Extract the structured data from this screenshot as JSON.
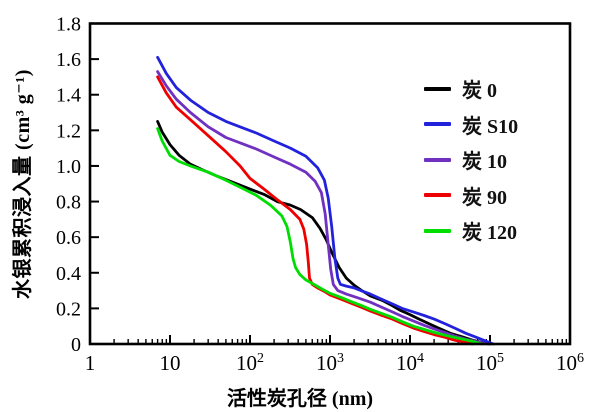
{
  "chart_data": {
    "type": "line",
    "title": "",
    "xlabel": "活性炭孔径 (nm)",
    "ylabel": "水银累积浸入量 (cm³ g⁻¹)",
    "x_scale": "log",
    "xlim": [
      1,
      1000000
    ],
    "ylim": [
      0,
      1.8
    ],
    "grid": false,
    "legend_position": "upper right inside",
    "y_ticks": [
      {
        "v": 0,
        "label": "0"
      },
      {
        "v": 0.2,
        "label": "0.2"
      },
      {
        "v": 0.4,
        "label": "0.4"
      },
      {
        "v": 0.6,
        "label": "0.6"
      },
      {
        "v": 0.8,
        "label": "0.8"
      },
      {
        "v": 1.0,
        "label": "1.0"
      },
      {
        "v": 1.2,
        "label": "1.2"
      },
      {
        "v": 1.4,
        "label": "1.4"
      },
      {
        "v": 1.6,
        "label": "1.6"
      },
      {
        "v": 1.8,
        "label": "1.8"
      }
    ],
    "x_ticks": [
      {
        "exp": 0,
        "base": "1",
        "sup": ""
      },
      {
        "exp": 1,
        "base": "10",
        "sup": ""
      },
      {
        "exp": 2,
        "base": "10",
        "sup": "2"
      },
      {
        "exp": 3,
        "base": "10",
        "sup": "3"
      },
      {
        "exp": 4,
        "base": "10",
        "sup": "4"
      },
      {
        "exp": 5,
        "base": "10",
        "sup": "5"
      },
      {
        "exp": 6,
        "base": "10",
        "sup": "6"
      }
    ],
    "series": [
      {
        "id": "tan0",
        "name": "炭 0",
        "color": "#000000",
        "points": [
          [
            7,
            1.25
          ],
          [
            8,
            1.19
          ],
          [
            10,
            1.12
          ],
          [
            13,
            1.06
          ],
          [
            18,
            1.01
          ],
          [
            25,
            0.98
          ],
          [
            40,
            0.94
          ],
          [
            60,
            0.91
          ],
          [
            100,
            0.87
          ],
          [
            150,
            0.84
          ],
          [
            220,
            0.8
          ],
          [
            320,
            0.78
          ],
          [
            430,
            0.755
          ],
          [
            600,
            0.71
          ],
          [
            750,
            0.65
          ],
          [
            900,
            0.585
          ],
          [
            1050,
            0.515
          ],
          [
            1300,
            0.43
          ],
          [
            1600,
            0.37
          ],
          [
            2000,
            0.33
          ],
          [
            2500,
            0.3
          ],
          [
            3200,
            0.27
          ],
          [
            4500,
            0.245
          ],
          [
            6000,
            0.215
          ],
          [
            7500,
            0.19
          ],
          [
            10000,
            0.165
          ],
          [
            13000,
            0.14
          ],
          [
            18000,
            0.11
          ],
          [
            24000,
            0.085
          ],
          [
            32000,
            0.06
          ],
          [
            45000,
            0.04
          ],
          [
            60000,
            0.022
          ],
          [
            80000,
            0.008
          ],
          [
            100000,
            0
          ]
        ]
      },
      {
        "id": "tan90",
        "name": "炭 90",
        "color": "#ee0000",
        "points": [
          [
            7,
            1.5
          ],
          [
            9,
            1.41
          ],
          [
            12,
            1.33
          ],
          [
            18,
            1.26
          ],
          [
            30,
            1.17
          ],
          [
            50,
            1.08
          ],
          [
            75,
            1.0
          ],
          [
            100,
            0.93
          ],
          [
            150,
            0.87
          ],
          [
            220,
            0.81
          ],
          [
            320,
            0.755
          ],
          [
            420,
            0.7
          ],
          [
            470,
            0.645
          ],
          [
            510,
            0.56
          ],
          [
            535,
            0.46
          ],
          [
            555,
            0.37
          ],
          [
            600,
            0.335
          ],
          [
            700,
            0.315
          ],
          [
            850,
            0.295
          ],
          [
            1000,
            0.275
          ],
          [
            1400,
            0.25
          ],
          [
            1800,
            0.23
          ],
          [
            2500,
            0.205
          ],
          [
            3200,
            0.185
          ],
          [
            4500,
            0.16
          ],
          [
            6000,
            0.14
          ],
          [
            8000,
            0.115
          ],
          [
            11000,
            0.09
          ],
          [
            15000,
            0.07
          ],
          [
            20000,
            0.053
          ],
          [
            27000,
            0.038
          ],
          [
            36000,
            0.022
          ],
          [
            48000,
            0.01
          ],
          [
            60000,
            0
          ]
        ]
      },
      {
        "id": "tan10",
        "name": "炭 10",
        "color": "#7030c0",
        "points": [
          [
            7,
            1.53
          ],
          [
            9,
            1.45
          ],
          [
            12,
            1.375
          ],
          [
            18,
            1.3
          ],
          [
            30,
            1.22
          ],
          [
            50,
            1.16
          ],
          [
            80,
            1.125
          ],
          [
            120,
            1.095
          ],
          [
            200,
            1.05
          ],
          [
            320,
            1.01
          ],
          [
            500,
            0.965
          ],
          [
            650,
            0.915
          ],
          [
            780,
            0.85
          ],
          [
            870,
            0.73
          ],
          [
            950,
            0.56
          ],
          [
            1020,
            0.42
          ],
          [
            1100,
            0.335
          ],
          [
            1250,
            0.3
          ],
          [
            1600,
            0.28
          ],
          [
            2200,
            0.26
          ],
          [
            3200,
            0.235
          ],
          [
            4500,
            0.205
          ],
          [
            6000,
            0.18
          ],
          [
            8000,
            0.155
          ],
          [
            11000,
            0.13
          ],
          [
            15000,
            0.105
          ],
          [
            20000,
            0.085
          ],
          [
            27000,
            0.065
          ],
          [
            36000,
            0.045
          ],
          [
            50000,
            0.027
          ],
          [
            70000,
            0.012
          ],
          [
            95000,
            0
          ]
        ]
      },
      {
        "id": "tanS10",
        "name": "炭 S10",
        "color": "#2222dd",
        "points": [
          [
            7,
            1.61
          ],
          [
            9,
            1.52
          ],
          [
            12,
            1.44
          ],
          [
            18,
            1.37
          ],
          [
            30,
            1.3
          ],
          [
            50,
            1.25
          ],
          [
            80,
            1.215
          ],
          [
            120,
            1.185
          ],
          [
            200,
            1.14
          ],
          [
            320,
            1.1
          ],
          [
            500,
            1.055
          ],
          [
            700,
            0.99
          ],
          [
            850,
            0.92
          ],
          [
            950,
            0.82
          ],
          [
            1050,
            0.66
          ],
          [
            1150,
            0.48
          ],
          [
            1250,
            0.37
          ],
          [
            1350,
            0.335
          ],
          [
            1600,
            0.325
          ],
          [
            2000,
            0.315
          ],
          [
            2600,
            0.295
          ],
          [
            3200,
            0.28
          ],
          [
            4500,
            0.25
          ],
          [
            6000,
            0.225
          ],
          [
            8000,
            0.2
          ],
          [
            11000,
            0.18
          ],
          [
            15000,
            0.16
          ],
          [
            20000,
            0.14
          ],
          [
            27000,
            0.115
          ],
          [
            36000,
            0.09
          ],
          [
            50000,
            0.06
          ],
          [
            70000,
            0.035
          ],
          [
            90000,
            0.015
          ],
          [
            110000,
            0
          ]
        ]
      },
      {
        "id": "tan120",
        "name": "炭 120",
        "color": "#00dd00",
        "points": [
          [
            7,
            1.21
          ],
          [
            8,
            1.14
          ],
          [
            10,
            1.06
          ],
          [
            13,
            1.025
          ],
          [
            18,
            1.0
          ],
          [
            30,
            0.965
          ],
          [
            50,
            0.92
          ],
          [
            80,
            0.875
          ],
          [
            120,
            0.835
          ],
          [
            180,
            0.78
          ],
          [
            250,
            0.72
          ],
          [
            290,
            0.66
          ],
          [
            320,
            0.57
          ],
          [
            345,
            0.48
          ],
          [
            370,
            0.43
          ],
          [
            420,
            0.39
          ],
          [
            500,
            0.36
          ],
          [
            600,
            0.34
          ],
          [
            750,
            0.315
          ],
          [
            1000,
            0.285
          ],
          [
            1400,
            0.26
          ],
          [
            1800,
            0.24
          ],
          [
            2500,
            0.215
          ],
          [
            3200,
            0.195
          ],
          [
            4500,
            0.17
          ],
          [
            6000,
            0.15
          ],
          [
            8000,
            0.125
          ],
          [
            11000,
            0.1
          ],
          [
            15000,
            0.082
          ],
          [
            20000,
            0.065
          ],
          [
            27000,
            0.05
          ],
          [
            36000,
            0.037
          ],
          [
            48000,
            0.025
          ],
          [
            60000,
            0.015
          ],
          [
            80000,
            0
          ]
        ]
      }
    ],
    "legend_order": [
      "tan0",
      "tanS10",
      "tan10",
      "tan90",
      "tan120"
    ]
  }
}
